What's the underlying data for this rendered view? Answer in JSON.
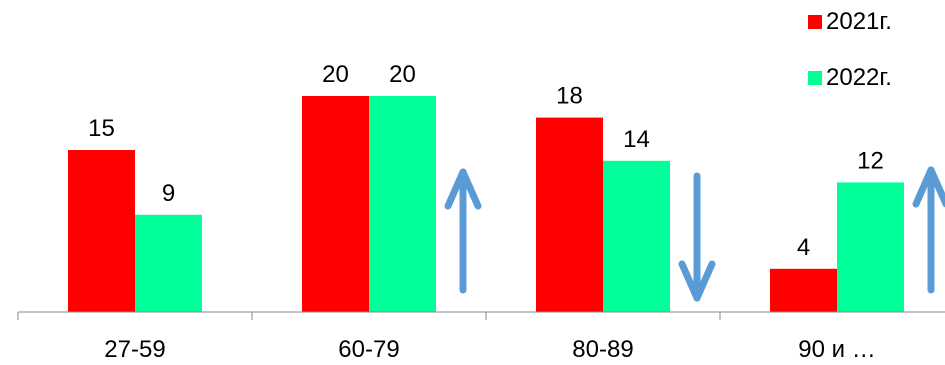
{
  "chart_data": {
    "type": "bar",
    "categories": [
      "27-59",
      "60-79",
      "80-89",
      "90 и …"
    ],
    "series": [
      {
        "name": "2021г.",
        "color": "#ff0000",
        "values": [
          15,
          20,
          18,
          4
        ]
      },
      {
        "name": "2022г.",
        "color": "#00ff99",
        "values": [
          9,
          20,
          14,
          12
        ]
      }
    ],
    "ylim": [
      0,
      20
    ],
    "grid": false,
    "legend_position": "top-right",
    "data_labels": true,
    "annotations": [
      {
        "type": "arrow",
        "direction": "up",
        "after_category": "60-79",
        "color": "#5b9bd5"
      },
      {
        "type": "arrow",
        "direction": "down",
        "after_category": "80-89",
        "color": "#5b9bd5"
      },
      {
        "type": "arrow",
        "direction": "up",
        "after_category": "90 и …",
        "color": "#5b9bd5"
      }
    ]
  }
}
